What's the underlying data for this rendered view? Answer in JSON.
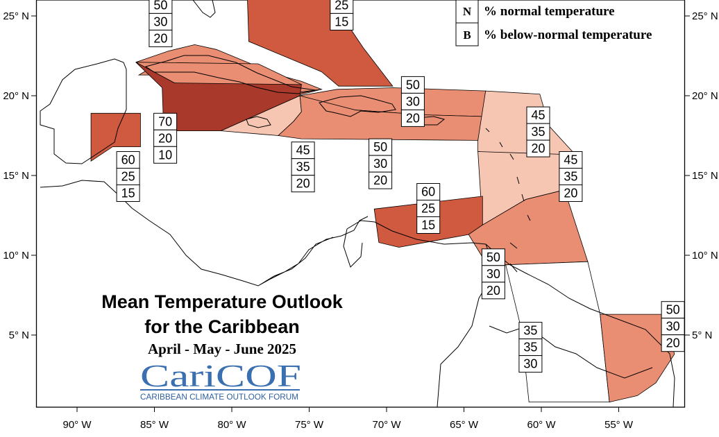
{
  "title": {
    "line1": "Mean Temperature Outlook",
    "line2": "for the Caribbean",
    "period": "April - May - June 2025"
  },
  "logo": {
    "name": "CariCOF",
    "tagline": "CARIBBEAN CLIMATE OUTLOOK FORUM"
  },
  "legend": [
    {
      "key": "N",
      "label": "% normal temperature"
    },
    {
      "key": "B",
      "label": "% below-normal temperature"
    }
  ],
  "axes": {
    "x_ticks": [
      {
        "lon": -90,
        "label": "90° W"
      },
      {
        "lon": -85,
        "label": "85° W"
      },
      {
        "lon": -80,
        "label": "80° W"
      },
      {
        "lon": -75,
        "label": "75° W"
      },
      {
        "lon": -70,
        "label": "70° W"
      },
      {
        "lon": -65,
        "label": "65° W"
      },
      {
        "lon": -60,
        "label": "60° W"
      },
      {
        "lon": -55,
        "label": "55° W"
      }
    ],
    "y_ticks": [
      {
        "lat": 25,
        "label": "25° N"
      },
      {
        "lat": 20,
        "label": "20° N"
      },
      {
        "lat": 15,
        "label": "15° N"
      },
      {
        "lat": 10,
        "label": "10° N"
      },
      {
        "lat": 5,
        "label": "5° N"
      }
    ]
  },
  "colors": {
    "c70": "#a8392b",
    "c60": "#cf5a3f",
    "c50": "#e98e72",
    "c45": "#f7c6b2",
    "c35": "#ffffff",
    "outline": "#000000",
    "logo": "#3a6fb0"
  },
  "regions": [
    {
      "name": "cuba-west",
      "color": "c50",
      "points": [
        [
          -86,
          21.3
        ],
        [
          -84.8,
          22
        ],
        [
          -80,
          21.9
        ],
        [
          -75.5,
          20.7
        ],
        [
          -74.2,
          20.4
        ],
        [
          -75.8,
          20
        ],
        [
          -78.5,
          20.5
        ],
        [
          -85,
          21.3
        ]
      ]
    },
    {
      "name": "bahamas",
      "color": "c60",
      "points": [
        [
          -79,
          26.3
        ],
        [
          -73.8,
          26.3
        ],
        [
          -71.5,
          23
        ],
        [
          -69.6,
          20.6
        ],
        [
          -73.1,
          20.6
        ],
        [
          -74.2,
          21.5
        ],
        [
          -78.9,
          23.4
        ]
      ]
    },
    {
      "name": "cuba-main",
      "color": "c50",
      "points": [
        [
          -84.8,
          22
        ],
        [
          -80,
          21.9
        ],
        [
          -78,
          21.3
        ],
        [
          -75.8,
          20.2
        ],
        [
          -74.2,
          20.4
        ],
        [
          -75.5,
          20.9
        ],
        [
          -77,
          21.3
        ],
        [
          -79,
          22.1
        ],
        [
          -81,
          22.9
        ],
        [
          -82.4,
          23.2
        ],
        [
          -84.1,
          22.8
        ],
        [
          -86.2,
          22.1
        ]
      ]
    },
    {
      "name": "cuba-central",
      "color": "c50",
      "points": [
        [
          -86.2,
          22.1
        ],
        [
          -78.3,
          22
        ],
        [
          -75.5,
          20.7
        ],
        [
          -77.5,
          20.3
        ],
        [
          -83.7,
          20.8
        ]
      ]
    },
    {
      "name": "northwest-caribbean",
      "color": "c70",
      "points": [
        [
          -86.2,
          22.1
        ],
        [
          -83.7,
          20.8
        ],
        [
          -75.5,
          20.7
        ],
        [
          -75.6,
          20
        ],
        [
          -80.7,
          17.8
        ],
        [
          -84.4,
          17.8
        ],
        [
          -84.5,
          20.5
        ]
      ]
    },
    {
      "name": "hispaniola",
      "color": "c50",
      "points": [
        [
          -75.6,
          20
        ],
        [
          -73.2,
          20.4
        ],
        [
          -69.6,
          20.5
        ],
        [
          -63.6,
          20.3
        ],
        [
          -63.8,
          18.7
        ],
        [
          -67.5,
          18.8
        ],
        [
          -72,
          19.1
        ],
        [
          -75.6,
          19.8
        ]
      ]
    },
    {
      "name": "jamaica",
      "color": "c45",
      "points": [
        [
          -80.7,
          17.8
        ],
        [
          -75.6,
          20
        ],
        [
          -75.5,
          19
        ],
        [
          -76,
          18.4
        ],
        [
          -77,
          17.5
        ]
      ]
    },
    {
      "name": "greater-antilles-south",
      "color": "c50",
      "points": [
        [
          -75.6,
          20
        ],
        [
          -72,
          19.1
        ],
        [
          -67.5,
          18.8
        ],
        [
          -63.8,
          18.7
        ],
        [
          -64.1,
          17.2
        ],
        [
          -75.5,
          17.3
        ],
        [
          -77,
          17.5
        ],
        [
          -76,
          18.4
        ],
        [
          -75.5,
          19
        ]
      ]
    },
    {
      "name": "belize",
      "color": "c60",
      "points": [
        [
          -89.1,
          18.9
        ],
        [
          -85.9,
          18.9
        ],
        [
          -85.9,
          16.8
        ],
        [
          -87.7,
          16.8
        ],
        [
          -89.1,
          15.9
        ]
      ]
    },
    {
      "name": "leeward-islands",
      "color": "c45",
      "points": [
        [
          -63.6,
          20.3
        ],
        [
          -60.1,
          20.1
        ],
        [
          -59.5,
          18.1
        ],
        [
          -57.8,
          16.3
        ],
        [
          -60.6,
          16.2
        ],
        [
          -64.1,
          16.5
        ],
        [
          -64.1,
          17.2
        ]
      ]
    },
    {
      "name": "windward-islands",
      "color": "c45",
      "points": [
        [
          -64.1,
          16.5
        ],
        [
          -57.8,
          16.3
        ],
        [
          -58.5,
          14.1
        ],
        [
          -61,
          13.5
        ],
        [
          -63.8,
          11.9
        ]
      ]
    },
    {
      "name": "aruba-curacao",
      "color": "c60",
      "points": [
        [
          -70.8,
          12.9
        ],
        [
          -63.8,
          13.7
        ],
        [
          -63.8,
          11.9
        ],
        [
          -64.7,
          11.3
        ],
        [
          -69.2,
          10.5
        ],
        [
          -70.5,
          10.8
        ]
      ]
    },
    {
      "name": "trinidad-tobago",
      "color": "c50",
      "points": [
        [
          -63.8,
          11.9
        ],
        [
          -61,
          13.5
        ],
        [
          -58.5,
          14.1
        ],
        [
          -57,
          9.6
        ],
        [
          -62.3,
          9.4
        ],
        [
          -63.5,
          9.4
        ],
        [
          -64.7,
          11.3
        ]
      ]
    },
    {
      "name": "guyana-suriname",
      "color": "c35",
      "points": [
        [
          -62.3,
          9.4
        ],
        [
          -57,
          9.6
        ],
        [
          -56.2,
          6.3
        ],
        [
          -55.6,
          0.8
        ],
        [
          -60.8,
          0.8
        ],
        [
          -61.3,
          5.4
        ]
      ]
    },
    {
      "name": "french-guiana",
      "color": "c50",
      "points": [
        [
          -56.2,
          6.3
        ],
        [
          -52,
          6.3
        ],
        [
          -51.4,
          3.8
        ],
        [
          -52.6,
          2
        ],
        [
          -53.8,
          1.2
        ],
        [
          -55.6,
          0.8
        ]
      ]
    }
  ],
  "boxes": [
    {
      "region": "bahamas-north-left",
      "lon": -84.6,
      "lat": 26.2,
      "values": [
        "50",
        "30",
        "20"
      ]
    },
    {
      "region": "bahamas",
      "lon": -72.9,
      "lat": 26.2,
      "values": [
        "25",
        "15"
      ]
    },
    {
      "region": "northwest-caribbean",
      "lon": -84.3,
      "lat": 18.9,
      "values": [
        "70",
        "20",
        "10"
      ]
    },
    {
      "region": "belize",
      "lon": -86.7,
      "lat": 16.5,
      "values": [
        "60",
        "25",
        "15"
      ]
    },
    {
      "region": "hispaniola",
      "lon": -68.3,
      "lat": 21.2,
      "values": [
        "50",
        "30",
        "20"
      ]
    },
    {
      "region": "jamaica",
      "lon": -75.4,
      "lat": 17.1,
      "values": [
        "45",
        "35",
        "20"
      ]
    },
    {
      "region": "greater-antilles-south",
      "lon": -70.4,
      "lat": 17.3,
      "values": [
        "50",
        "30",
        "20"
      ]
    },
    {
      "region": "leeward-islands",
      "lon": -60.2,
      "lat": 19.3,
      "values": [
        "45",
        "35",
        "20"
      ]
    },
    {
      "region": "windward-islands",
      "lon": -58.1,
      "lat": 16.5,
      "values": [
        "45",
        "35",
        "20"
      ]
    },
    {
      "region": "aruba-curacao",
      "lon": -67.3,
      "lat": 14.5,
      "values": [
        "60",
        "25",
        "15"
      ]
    },
    {
      "region": "trinidad-tobago",
      "lon": -63.1,
      "lat": 10.4,
      "values": [
        "50",
        "30",
        "20"
      ]
    },
    {
      "region": "guyana-suriname",
      "lon": -60.7,
      "lat": 5.8,
      "values": [
        "35",
        "35",
        "30"
      ]
    },
    {
      "region": "french-guiana",
      "lon": -51.5,
      "lat": 7.1,
      "values": [
        "50",
        "30",
        "20"
      ]
    }
  ]
}
